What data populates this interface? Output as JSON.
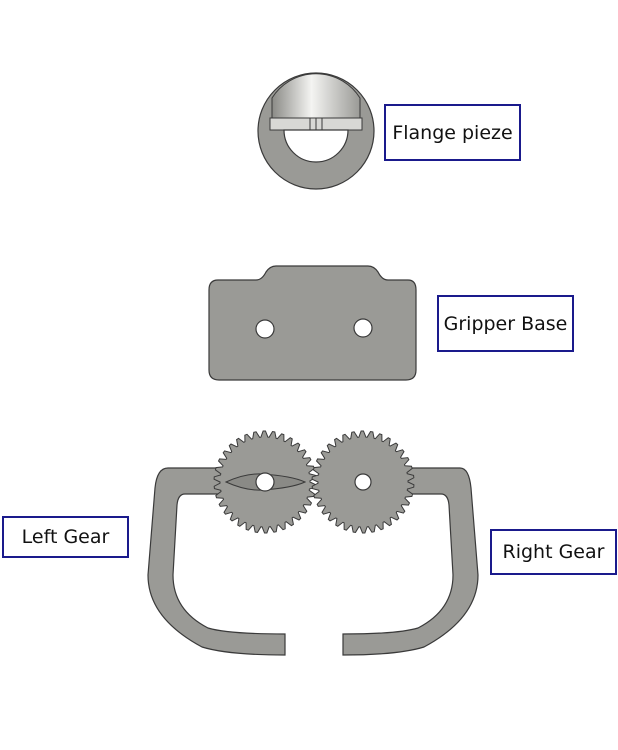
{
  "labels": {
    "flange": "Flange pieze",
    "base": "Gripper Base",
    "left_gear": "Left Gear",
    "right_gear": "Right Gear"
  },
  "colors": {
    "part_fill": "#9a9a96",
    "part_stroke": "#3a3a3a",
    "label_border": "#1a1a8c",
    "hole_fill": "#ffffff"
  }
}
